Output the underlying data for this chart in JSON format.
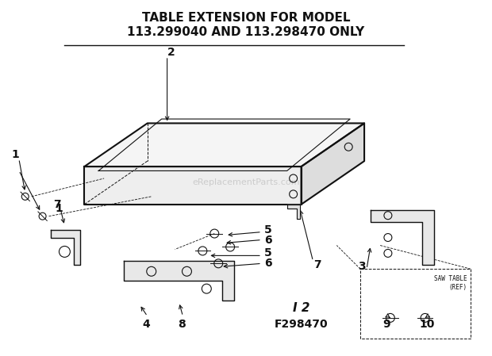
{
  "title_line1": "TABLE EXTENSION FOR MODEL",
  "title_line2": "113.299040 AND 113.298470 ONLY",
  "figure_code": "I 2",
  "figure_number": "F298470",
  "watermark": "eReplacementParts.com",
  "bg_color": "#ffffff",
  "ink_color": "#111111"
}
